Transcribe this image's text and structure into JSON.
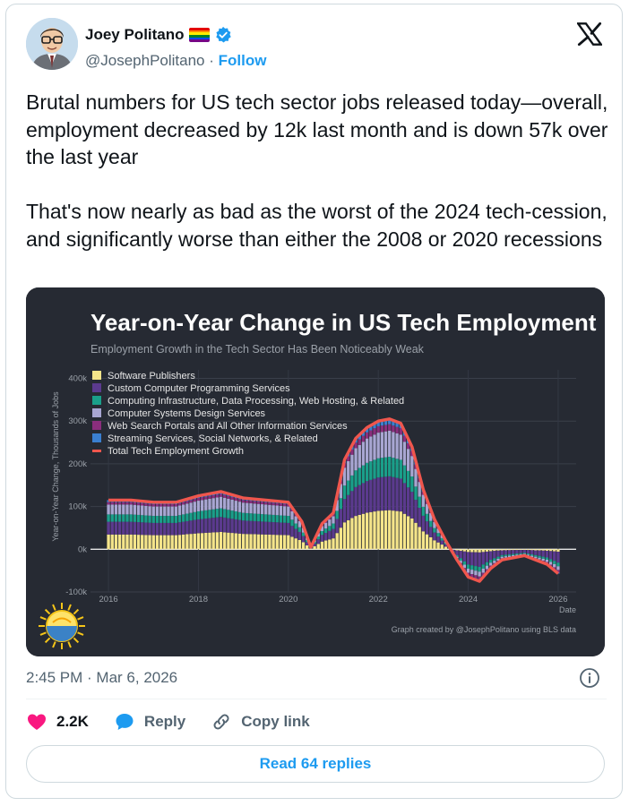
{
  "author": {
    "name": "Joey Politano",
    "handle": "@JosephPolitano",
    "separator": "·",
    "follow_label": "Follow"
  },
  "icons": {
    "flag": "rainbow-flag-icon",
    "verified": "verified-badge-icon",
    "brand": "x-logo-icon",
    "info": "info-icon",
    "like": "heart-icon",
    "reply": "reply-bubble-icon",
    "copy": "link-icon"
  },
  "colors": {
    "accent": "#1d9bf0",
    "like": "#f91880",
    "text": "#0f1419",
    "muted": "#536471"
  },
  "tweet": {
    "text": "Brutal numbers for US tech sector jobs released today—overall, employment decreased by 12k last month and is down 57k over the last year\n\nThat's now nearly as bad as the worst of the 2024 tech-cession, and significantly worse than either the 2008 or 2020 recessions",
    "timestamp": "2:45 PM · Mar 6, 2026"
  },
  "actions": {
    "likes": "2.2K",
    "reply_label": "Reply",
    "copy_label": "Copy link",
    "read_replies": "Read 64 replies"
  },
  "chart_data": {
    "type": "bar",
    "title": "Year-on-Year Change in US Tech Employment",
    "subtitle": "Employment Growth in the Tech Sector Has Been Noticeably Weak",
    "xlabel": "Date",
    "ylabel": "Year-on-Year Change, Thousands of Jobs",
    "ylim": [
      -100,
      420
    ],
    "xlim": [
      2015.6,
      2026.4
    ],
    "yticks": [
      -100,
      0,
      100,
      200,
      300,
      400
    ],
    "ytick_labels": [
      "-100k",
      "0k",
      "100k",
      "200k",
      "300k",
      "400k"
    ],
    "xticks": [
      2016,
      2018,
      2020,
      2022,
      2024,
      2026
    ],
    "credit": "Graph created by @JosephPolitano using BLS data",
    "series": [
      {
        "name": "Software Publishers",
        "color": "#f5e58a"
      },
      {
        "name": "Custom Computer Programming Services",
        "color": "#5b3a8e"
      },
      {
        "name": "Computing Infrastructure, Data Processing, Web Hosting, & Related",
        "color": "#1a9f8a"
      },
      {
        "name": "Computer Systems Design Services",
        "color": "#a8a6d2"
      },
      {
        "name": "Web Search Portals and All Other Information Services",
        "color": "#8a2e7d"
      },
      {
        "name": "Streaming Services, Social Networks, & Related",
        "color": "#3a7fd0"
      },
      {
        "name": "Total Tech Employment Growth",
        "color": "#f0564d"
      }
    ],
    "total": {
      "x": [
        2016,
        2016.5,
        2017,
        2017.5,
        2018,
        2018.5,
        2019,
        2019.5,
        2020,
        2020.3,
        2020.5,
        2020.75,
        2021,
        2021.25,
        2021.5,
        2021.75,
        2022,
        2022.25,
        2022.5,
        2022.75,
        2023,
        2023.25,
        2023.5,
        2023.75,
        2024,
        2024.25,
        2024.5,
        2024.75,
        2025,
        2025.25,
        2025.5,
        2025.75,
        2026
      ],
      "y": [
        115,
        115,
        110,
        110,
        125,
        135,
        120,
        115,
        110,
        65,
        5,
        60,
        85,
        210,
        260,
        285,
        300,
        305,
        295,
        240,
        140,
        70,
        20,
        -25,
        -65,
        -75,
        -45,
        -25,
        -20,
        -15,
        -25,
        -35,
        -57
      ]
    }
  }
}
